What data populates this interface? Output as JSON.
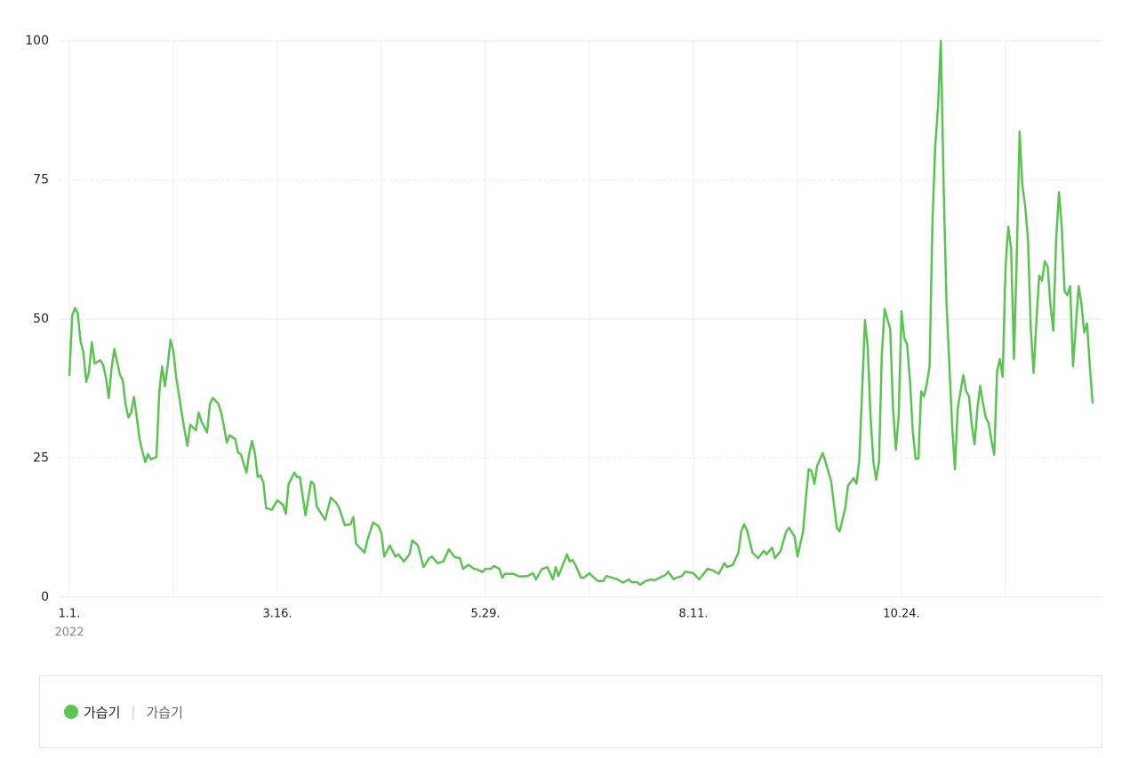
{
  "chart_data": {
    "type": "line",
    "x": [
      0,
      1,
      2,
      3,
      4,
      5,
      6,
      7,
      8,
      9,
      11,
      12,
      13,
      14,
      15,
      16,
      18,
      19,
      20,
      21,
      22,
      23,
      24,
      25,
      26,
      27,
      28,
      29,
      31,
      32,
      33,
      34,
      35,
      36,
      37,
      38,
      39,
      40,
      41,
      42,
      43,
      45,
      46,
      47,
      49,
      50,
      51,
      53,
      54,
      55,
      56,
      57,
      59,
      60,
      61,
      62,
      63,
      64,
      65,
      66,
      67,
      68,
      69,
      70,
      72,
      74,
      76,
      77,
      78,
      80,
      81,
      82,
      84,
      86,
      87,
      88,
      90,
      91,
      93,
      95,
      96,
      98,
      100,
      101,
      102,
      105,
      106,
      108,
      110,
      111,
      112,
      114,
      116,
      117,
      119,
      121,
      122,
      124,
      126,
      128,
      129,
      131,
      133,
      135,
      137,
      139,
      140,
      142,
      144,
      145,
      147,
      148,
      150,
      151,
      153,
      154,
      155,
      158,
      160,
      163,
      165,
      166,
      168,
      170,
      172,
      173,
      174,
      177,
      178,
      179,
      180,
      182,
      183,
      185,
      186,
      188,
      190,
      191,
      193,
      195,
      197,
      199,
      200,
      202,
      203,
      205,
      207,
      208,
      210,
      212,
      213,
      215,
      216,
      218,
      219,
      222,
      224,
      225,
      227,
      229,
      231,
      233,
      234,
      236,
      238,
      239,
      240,
      241,
      243,
      245,
      247,
      248,
      250,
      251,
      253,
      255,
      256,
      258,
      259,
      261,
      262,
      263,
      264,
      265,
      266,
      268,
      269,
      271,
      272,
      273,
      274,
      276,
      277,
      279,
      280,
      281,
      282,
      283,
      284,
      285,
      286,
      287,
      288,
      289,
      290,
      292,
      293,
      294,
      295,
      296,
      297,
      298,
      299,
      300,
      301,
      302,
      303,
      304,
      305,
      306,
      307,
      308,
      309,
      310,
      311,
      312,
      314,
      315,
      316,
      318,
      319,
      320,
      321,
      322,
      323,
      324,
      325,
      326,
      327,
      328,
      329,
      330,
      331,
      332,
      333,
      334,
      335,
      336,
      337,
      338,
      339,
      340,
      341,
      342,
      343,
      344,
      345,
      346,
      347,
      348,
      349,
      350,
      351,
      352,
      353,
      354,
      355,
      356,
      357,
      358,
      359,
      360,
      361,
      362,
      363,
      364
    ],
    "series": [
      {
        "name": "가습기",
        "color": "#5ac451",
        "values": [
          39.8,
          50.6,
          52,
          51,
          46,
          44,
          38.7,
          40.5,
          45.8,
          42,
          42.6,
          41.8,
          39.5,
          35.8,
          41,
          44.6,
          40,
          39,
          34.7,
          32.3,
          33.2,
          36,
          32.3,
          28.3,
          26.2,
          24.3,
          25.7,
          24.8,
          25.2,
          37,
          41.5,
          37.9,
          41.8,
          46.3,
          44.2,
          39.5,
          36.3,
          33,
          30,
          27.2,
          31,
          30,
          33.2,
          31.6,
          29.6,
          34.7,
          35.8,
          34.8,
          33.2,
          30.7,
          27.8,
          29.1,
          28.4,
          26,
          25.7,
          24,
          22.4,
          25.9,
          28.1,
          25.9,
          21.6,
          21.9,
          20.6,
          16,
          15.7,
          17.4,
          16.6,
          15,
          20.3,
          22.4,
          21.6,
          21.6,
          14.7,
          20.8,
          20.3,
          16.3,
          14.7,
          13.9,
          17.9,
          16.9,
          16,
          12.9,
          13.1,
          14.4,
          9.6,
          8,
          10.2,
          13.4,
          12.8,
          11.5,
          7.3,
          9.3,
          7.3,
          7.7,
          6.4,
          7.7,
          10.2,
          9.3,
          5.4,
          7,
          7.3,
          6.1,
          6.4,
          8.6,
          7.2,
          7,
          5.1,
          5.8,
          5.1,
          5,
          4.5,
          5.1,
          5.1,
          5.6,
          5.1,
          3.5,
          4.2,
          4.2,
          3.7,
          3.8,
          4.3,
          3.2,
          5,
          5.4,
          3.2,
          5.4,
          3.8,
          7.7,
          6.4,
          6.7,
          5.8,
          3.5,
          3.5,
          4.3,
          3.8,
          2.9,
          2.9,
          3.8,
          3.5,
          3.2,
          2.6,
          3.2,
          2.7,
          2.7,
          2.2,
          2.9,
          3.2,
          3,
          3.5,
          4,
          4.6,
          3.2,
          3.5,
          3.8,
          4.6,
          4.3,
          3.2,
          3.8,
          5.1,
          4.8,
          4.2,
          6.1,
          5.4,
          5.8,
          8,
          11.8,
          13.1,
          12.1,
          8,
          7,
          8.3,
          7.7,
          8.9,
          7,
          8.3,
          11.8,
          12.5,
          10.9,
          7.3,
          11.8,
          17.9,
          23,
          22.7,
          20.3,
          23.6,
          25.9,
          24.3,
          20.8,
          16.6,
          12.5,
          11.8,
          16,
          20.1,
          21.4,
          20.4,
          24.6,
          37,
          49.8,
          45,
          32.3,
          24.3,
          21.1,
          24.3,
          43.4,
          51.8,
          48.2,
          33.9,
          26.5,
          32.6,
          51.4,
          46.6,
          45.4,
          39,
          30,
          24.9,
          24.9,
          37,
          36.1,
          38.3,
          41.5,
          67.4,
          81,
          88.2,
          100,
          73.8,
          53,
          31,
          23,
          33.9,
          39.9,
          37,
          36.1,
          31,
          27.5,
          33.9,
          38,
          34.8,
          32.3,
          31.3,
          28.1,
          25.6,
          40.6,
          42.8,
          39.6,
          59.4,
          66.6,
          62.6,
          42.8,
          61,
          83.7,
          74.1,
          70.3,
          64.2,
          48.2,
          40.3,
          49.8,
          57.8,
          56.9,
          60.4,
          59.4,
          52.4,
          47.9,
          64.2,
          72.8,
          66.8,
          55,
          54.3,
          55.9,
          41.5,
          48.6,
          55.9,
          52.7,
          47.6,
          49.2,
          41.5,
          34.8
        ]
      }
    ],
    "xlim": [
      0,
      364
    ],
    "xticks": [
      {
        "value": 0,
        "label": "1.1."
      },
      {
        "value": 74,
        "label": "3.16."
      },
      {
        "value": 148,
        "label": "5.29."
      },
      {
        "value": 222,
        "label": "8.11."
      },
      {
        "value": 296,
        "label": "10.24."
      }
    ],
    "xgrid": [
      37,
      111,
      185,
      259,
      333
    ],
    "year": "2022",
    "ylim": [
      0,
      100
    ],
    "yticks": [
      0,
      25,
      50,
      75,
      100
    ],
    "grid": true,
    "legend_keyword": "가습기"
  }
}
